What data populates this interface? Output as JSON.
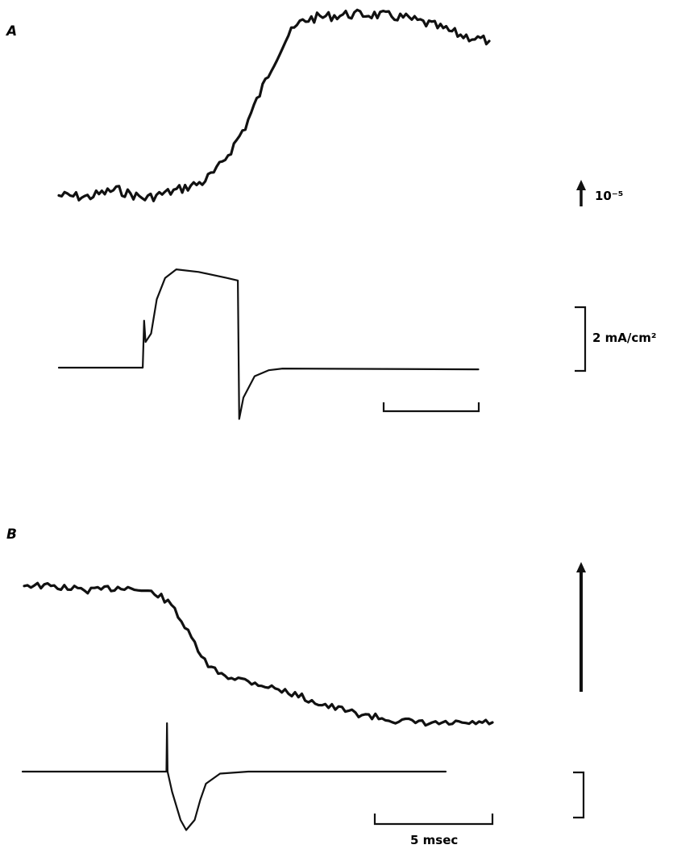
{
  "chart_data": [
    {
      "type": "line",
      "panel_label": "A",
      "series": [
        {
          "role": "optical-signal",
          "points": [
            [
              0,
              0.15
            ],
            [
              1,
              0.1
            ],
            [
              2,
              0.35
            ],
            [
              3,
              0.05
            ],
            [
              4,
              0.3
            ],
            [
              5,
              0.6
            ],
            [
              5.5,
              1.0
            ],
            [
              6,
              1.7
            ],
            [
              6.5,
              2.5
            ],
            [
              7,
              3.6
            ],
            [
              7.5,
              4.7
            ],
            [
              8,
              5.6
            ],
            [
              8.5,
              6.1
            ],
            [
              9,
              6.2
            ],
            [
              10,
              6.3
            ],
            [
              11,
              6.3
            ],
            [
              12,
              6.2
            ],
            [
              13,
              5.95
            ],
            [
              14,
              5.6
            ],
            [
              15,
              5.4
            ]
          ]
        },
        {
          "role": "membrane-current",
          "points": [
            [
              0,
              0
            ],
            [
              3,
              0
            ],
            [
              3.05,
              0.55
            ],
            [
              3.1,
              0.3
            ],
            [
              3.3,
              0.4
            ],
            [
              3.5,
              0.8
            ],
            [
              3.8,
              1.05
            ],
            [
              4.2,
              1.15
            ],
            [
              5,
              1.12
            ],
            [
              6,
              1.05
            ],
            [
              6.4,
              1.02
            ],
            [
              6.45,
              -0.6
            ],
            [
              6.6,
              -0.35
            ],
            [
              7,
              -0.1
            ],
            [
              7.5,
              -0.03
            ],
            [
              8,
              -0.01
            ],
            [
              15,
              -0.02
            ]
          ]
        }
      ],
      "x_range": [
        0,
        15
      ],
      "scale_labels": {
        "optical": "10⁻⁵",
        "current": "2 mA/cm²"
      }
    },
    {
      "type": "line",
      "panel_label": "B",
      "series": [
        {
          "role": "optical-signal",
          "points": [
            [
              0,
              0.3
            ],
            [
              1,
              0.28
            ],
            [
              2,
              0.25
            ],
            [
              3,
              0.28
            ],
            [
              4,
              0.22
            ],
            [
              4.5,
              0.1
            ],
            [
              5,
              -0.15
            ],
            [
              5.5,
              -0.38
            ],
            [
              6,
              -0.45
            ],
            [
              7,
              -0.52
            ],
            [
              8,
              -0.6
            ],
            [
              9,
              -0.7
            ],
            [
              10,
              -0.77
            ],
            [
              11,
              -0.82
            ],
            [
              12,
              -0.85
            ],
            [
              13,
              -0.85
            ],
            [
              14,
              -0.84
            ]
          ]
        },
        {
          "role": "membrane-current",
          "points": [
            [
              0,
              0
            ],
            [
              5.1,
              0
            ],
            [
              5.12,
              1.2
            ],
            [
              5.14,
              0
            ],
            [
              5.3,
              -0.5
            ],
            [
              5.6,
              -1.2
            ],
            [
              5.8,
              -1.45
            ],
            [
              6.1,
              -1.2
            ],
            [
              6.3,
              -0.7
            ],
            [
              6.5,
              -0.3
            ],
            [
              7,
              -0.05
            ],
            [
              8,
              0
            ],
            [
              15,
              0
            ]
          ]
        }
      ],
      "x_range": [
        0,
        15
      ],
      "scale_labels": {
        "time": "5 msec"
      }
    }
  ]
}
